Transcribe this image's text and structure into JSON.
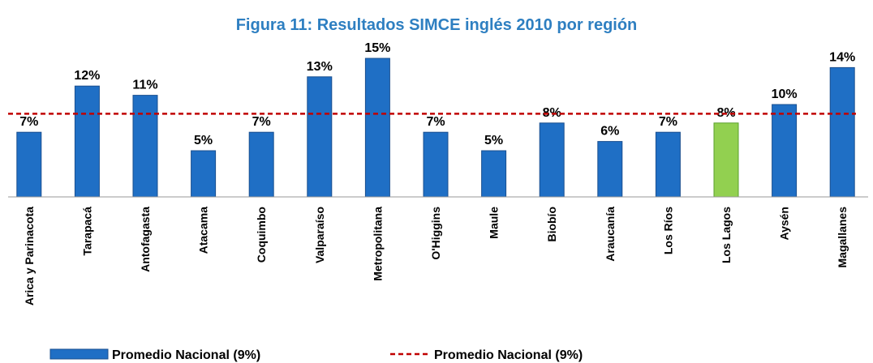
{
  "chart_data": {
    "type": "bar",
    "title": "Figura 11: Resultados SIMCE inglés 2010 por región",
    "categories": [
      "Arica y Parinacota",
      "Tarapacá",
      "Antofagasta",
      "Atacama",
      "Coquimbo",
      "Valparaíso",
      "Metropolitana",
      "O'Higgins",
      "Maule",
      "Biobío",
      "Araucanía",
      "Los Ríos",
      "Los Lagos",
      "Aysén",
      "Magallanes"
    ],
    "series": [
      {
        "name": "Promedio Nacional (9%)",
        "color": "#1f6fc5",
        "colors": [
          "#1f6fc5",
          "#1f6fc5",
          "#1f6fc5",
          "#1f6fc5",
          "#1f6fc5",
          "#1f6fc5",
          "#1f6fc5",
          "#1f6fc5",
          "#1f6fc5",
          "#1f6fc5",
          "#1f6fc5",
          "#1f6fc5",
          "#92d050",
          "#1f6fc5",
          "#1f6fc5"
        ],
        "values": [
          7,
          12,
          11,
          5,
          7,
          13,
          15,
          7,
          5,
          8,
          6,
          7,
          8,
          10,
          14
        ],
        "value_labels": [
          "7%",
          "12%",
          "11%",
          "5%",
          "7%",
          "13%",
          "15%",
          "7%",
          "5%",
          "8%",
          "6%",
          "7%",
          "8%",
          "10%",
          "14%"
        ]
      }
    ],
    "reference_line": {
      "name": "Promedio Nacional (9%)",
      "value": 9,
      "color": "#c00000"
    }
  }
}
